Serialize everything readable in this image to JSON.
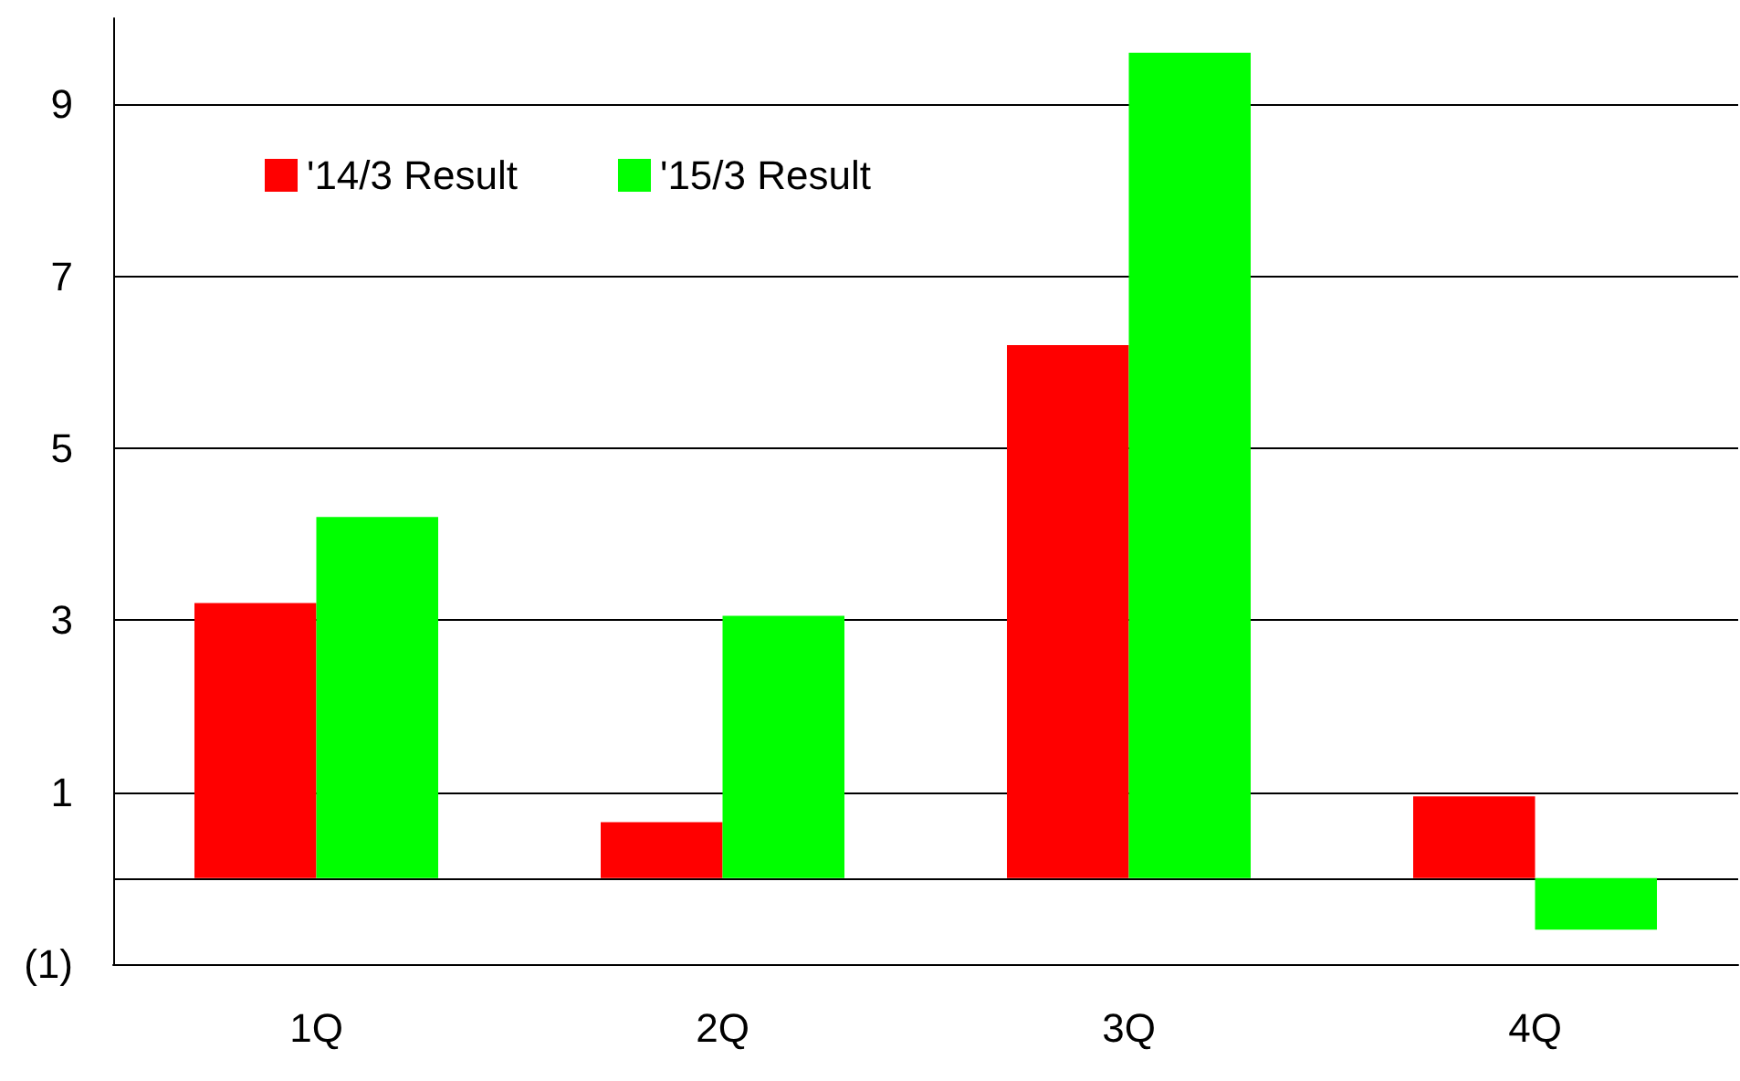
{
  "chart_data": {
    "type": "bar",
    "categories": [
      "1Q",
      "2Q",
      "3Q",
      "4Q"
    ],
    "series": [
      {
        "name": "'14/3 Result",
        "color": "#ff0000",
        "values": [
          3.2,
          0.65,
          6.2,
          0.95
        ]
      },
      {
        "name": "'15/3 Result",
        "color": "#00ff00",
        "values": [
          4.2,
          3.05,
          9.6,
          -0.6
        ]
      }
    ],
    "ylim": [
      -1,
      10
    ],
    "yticks": [
      {
        "value": -1,
        "label": "(1)"
      },
      {
        "value": 0,
        "label": null
      },
      1,
      3,
      5,
      7,
      9
    ],
    "grid": "y",
    "legend": "top left"
  }
}
